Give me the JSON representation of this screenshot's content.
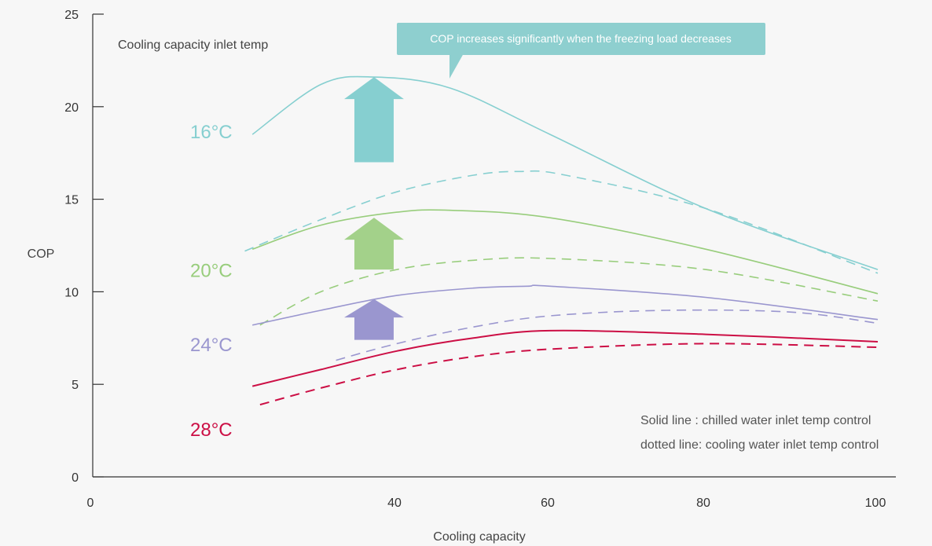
{
  "chart_data": {
    "type": "line",
    "xlabel": "Cooling capacity",
    "ylabel": "COP",
    "xlim": [
      0,
      100
    ],
    "ylim": [
      0,
      25
    ],
    "x_ticks": [
      0,
      40,
      60,
      80,
      100
    ],
    "y_ticks": [
      0,
      5,
      10,
      15,
      20,
      25
    ],
    "legend_title": "Cooling capacity inlet temp",
    "callout": "COP increases significantly when the freezing load decreases",
    "notes": [
      "Solid line : chilled water inlet temp control",
      "dotted line: cooling water inlet temp control"
    ],
    "series": [
      {
        "name": "16°C",
        "style": "solid",
        "color": "#86cfd0",
        "x": [
          21,
          30,
          37,
          47,
          60,
          80,
          100
        ],
        "y": [
          18.5,
          21.2,
          21.6,
          21.0,
          18.5,
          14.5,
          11.2
        ]
      },
      {
        "name": "16°C",
        "style": "dashed",
        "color": "#86cfd0",
        "x": [
          20,
          30,
          40,
          50,
          56,
          62,
          80,
          100
        ],
        "y": [
          12.2,
          13.9,
          15.4,
          16.3,
          16.5,
          16.3,
          14.5,
          11.0
        ]
      },
      {
        "name": "20°C",
        "style": "solid",
        "color": "#98cd7c",
        "x": [
          21,
          30,
          40,
          47,
          60,
          80,
          100
        ],
        "y": [
          12.3,
          13.6,
          14.3,
          14.4,
          14.0,
          12.3,
          9.9
        ]
      },
      {
        "name": "20°C",
        "style": "dashed",
        "color": "#98cd7c",
        "x": [
          22,
          30,
          40,
          50,
          60,
          80,
          100
        ],
        "y": [
          8.2,
          10.0,
          11.2,
          11.7,
          11.8,
          11.2,
          9.5
        ]
      },
      {
        "name": "24°C",
        "style": "solid",
        "color": "#9a96cf",
        "x": [
          21,
          30,
          40,
          50,
          57,
          60,
          80,
          100
        ],
        "y": [
          8.2,
          9.0,
          9.8,
          10.2,
          10.3,
          10.3,
          9.7,
          8.5
        ]
      },
      {
        "name": "24°C",
        "style": "dashed",
        "color": "#9a96cf",
        "x": [
          32,
          40,
          50,
          60,
          75,
          90,
          100
        ],
        "y": [
          6.3,
          7.2,
          8.1,
          8.7,
          9.0,
          8.9,
          8.3
        ]
      },
      {
        "name": "28°C",
        "style": "solid",
        "color": "#cc0f45",
        "x": [
          21,
          30,
          40,
          50,
          60,
          80,
          100
        ],
        "y": [
          4.9,
          5.8,
          6.8,
          7.5,
          7.9,
          7.7,
          7.3
        ]
      },
      {
        "name": "28°C",
        "style": "dashed",
        "color": "#cc0f45",
        "x": [
          22,
          30,
          40,
          50,
          60,
          80,
          100
        ],
        "y": [
          3.9,
          4.8,
          5.8,
          6.5,
          6.9,
          7.2,
          7.0
        ]
      }
    ],
    "labels": [
      {
        "text": "16°C",
        "color": "#86cfd0",
        "y": 18.3
      },
      {
        "text": "20°C",
        "color": "#98cd7c",
        "y": 10.8
      },
      {
        "text": "24°C",
        "color": "#9a96cf",
        "y": 6.8
      },
      {
        "text": "28°C",
        "color": "#cc0f45",
        "y": 2.2
      }
    ],
    "arrows": [
      {
        "color": "#86cfd0",
        "from": 17.0,
        "to": 21.6
      },
      {
        "color": "#a3d18a",
        "from": 11.2,
        "to": 14.0
      },
      {
        "color": "#9a96cf",
        "from": 7.4,
        "to": 9.6
      }
    ]
  }
}
